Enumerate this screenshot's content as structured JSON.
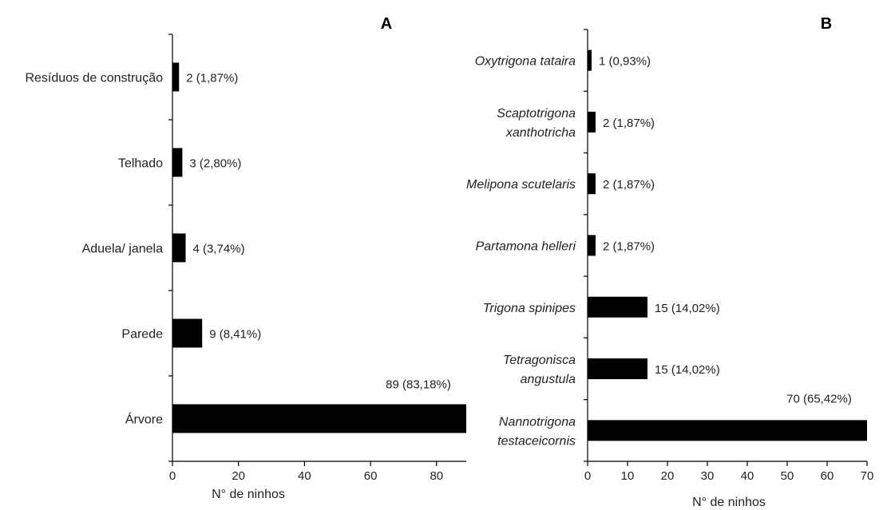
{
  "chart_data": [
    {
      "type": "bar",
      "orientation": "horizontal",
      "panel_label": "A",
      "categories": [
        "Resíduos de construção",
        "Telhado",
        "Aduela/ janela",
        "Parede",
        "Árvore"
      ],
      "values": [
        2,
        3,
        4,
        9,
        89
      ],
      "data_labels": [
        "2 (1,87%)",
        "3 (2,80%)",
        "4 (3,74%)",
        "9 (8,41%)",
        "89 (83,18%)"
      ],
      "xlabel": "N° de ninhos",
      "xticks": [
        "0",
        "20",
        "40",
        "60",
        "80"
      ],
      "xlim": [
        0,
        89
      ],
      "category_style": "normal",
      "grid": false,
      "color": "#000000"
    },
    {
      "type": "bar",
      "orientation": "horizontal",
      "panel_label": "B",
      "categories": [
        "Oxytrigona tataira",
        "Scaptotrigona xanthotricha",
        "Melipona scutelaris",
        "Partamona helleri",
        "Trigona spinipes",
        "Tetragonisca angustula",
        "Nannotrigona testaceicornis"
      ],
      "category_lines": [
        [
          "Oxytrigona tataira"
        ],
        [
          "Scaptotrigona",
          "xanthotricha"
        ],
        [
          "Melipona scutelaris"
        ],
        [
          "Partamona helleri"
        ],
        [
          "Trigona spinipes"
        ],
        [
          "Tetragonisca",
          "angustula"
        ],
        [
          "Nannotrigona",
          "testaceicornis"
        ]
      ],
      "values": [
        1,
        2,
        2,
        2,
        15,
        15,
        70
      ],
      "data_labels": [
        "1 (0,93%)",
        "2 (1,87%)",
        "2 (1,87%)",
        "2 (1,87%)",
        "15 (14,02%)",
        "15 (14,02%)",
        "70 (65,42%)"
      ],
      "xlabel": "N° de ninhos",
      "xticks": [
        "0",
        "10",
        "20",
        "30",
        "40",
        "50",
        "60",
        "70"
      ],
      "xlim": [
        0,
        70
      ],
      "category_style": "italic",
      "grid": false,
      "color": "#000000"
    }
  ]
}
